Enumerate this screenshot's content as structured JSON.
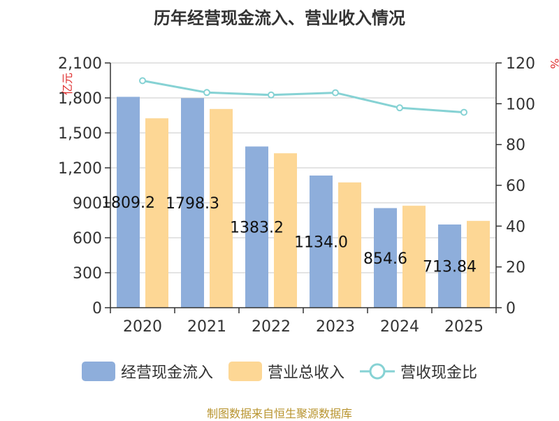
{
  "chart_data": {
    "type": "bar",
    "title": "历年经营现金流入、营业收入情况",
    "categories": [
      "2020",
      "2021",
      "2022",
      "2023",
      "2024",
      "2025"
    ],
    "left_axis": {
      "unit": "亿元",
      "ticks": [
        "0",
        "300",
        "600",
        "900",
        "1,200",
        "1,500",
        "1,800",
        "2,100"
      ],
      "ylim": [
        0,
        2100
      ]
    },
    "right_axis": {
      "unit": "%",
      "ticks": [
        "0",
        "20",
        "40",
        "60",
        "80",
        "100",
        "120"
      ],
      "ylim": [
        0,
        120
      ]
    },
    "series": [
      {
        "name": "经营现金流入",
        "type": "bar",
        "axis": "left",
        "color": "#8eaedb",
        "values": [
          1809.2,
          1798.3,
          1383.2,
          1134.0,
          854.6,
          713.84
        ],
        "labels": [
          "1809.2",
          "1798.3",
          "1383.2",
          "1134.0",
          "854.6",
          "713.84"
        ]
      },
      {
        "name": "营业总收入",
        "type": "bar",
        "axis": "left",
        "color": "#fdd795",
        "values": [
          1625,
          1705,
          1325,
          1075,
          875,
          745
        ]
      },
      {
        "name": "营收现金比",
        "type": "line",
        "axis": "right",
        "color": "#86d2d4",
        "values": [
          111.3,
          105.5,
          104.3,
          105.4,
          98.0,
          95.8
        ]
      }
    ]
  },
  "source": "制图数据来自恒生聚源数据库"
}
